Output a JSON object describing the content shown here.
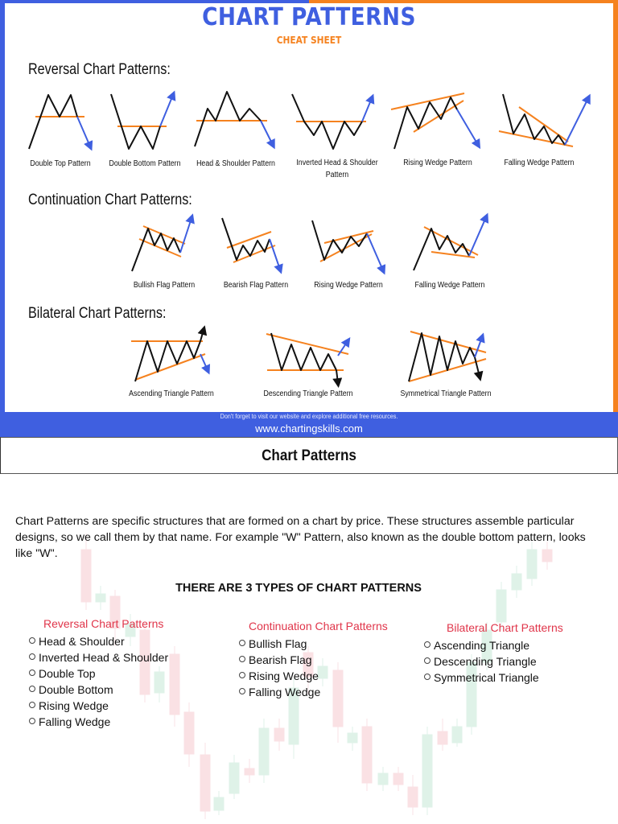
{
  "sheet": {
    "title": "CHART PATTERNS",
    "subtitle": "CHEAT SHEET",
    "sections": [
      "Reversal Chart Patterns:",
      "Continuation Chart Patterns:",
      "Bilateral Chart Patterns:"
    ],
    "reversal_labels": [
      "Double Top Pattern",
      "Double Bottom Pattern",
      "Head & Shoulder Pattern",
      "Inverted Head & Shoulder",
      "Pattern",
      "Rising Wedge Pattern",
      "Falling Wedge Pattern"
    ],
    "continuation_labels": [
      "Bullish Flag Pattern",
      "Bearish Flag Pattern",
      "Rising Wedge Pattern",
      "Falling Wedge Pattern"
    ],
    "bilateral_labels": [
      "Ascending Triangle Pattern",
      "Descending Triangle Pattern",
      "Symmetrical Triangle Pattern"
    ],
    "footer_note": "Don't forget to visit our website and explore additional free resources.",
    "footer_url": "www.chartingskills.com"
  },
  "article": {
    "heading": "Chart Patterns",
    "paragraph": "Chart Patterns are specific structures that are formed on a chart by price. These structures assemble particular designs, so we call them by that name. For example \"W\" Pattern, also known as the double bottom pattern, looks like \"W\".",
    "types_heading": "THERE ARE 3 TYPES OF CHART PATTERNS",
    "columns": [
      {
        "title": "Reversal Chart Patterns",
        "items": [
          "Head & Shoulder",
          "Inverted Head & Shoulder",
          "Double Top",
          "Double Bottom",
          "Rising Wedge",
          "Falling Wedge"
        ]
      },
      {
        "title": "Continuation Chart Patterns",
        "items": [
          "Bullish Flag",
          "Bearish Flag",
          "Rising Wedge",
          "Falling Wedge"
        ]
      },
      {
        "title": "Bilateral Chart Patterns",
        "items": [
          "Ascending Triangle",
          "Descending Triangle",
          "Symmetrical Triangle"
        ]
      }
    ]
  },
  "colors": {
    "blue": "#3f5fe0",
    "orange": "#f5821f",
    "red_heading": "#e0354a"
  }
}
